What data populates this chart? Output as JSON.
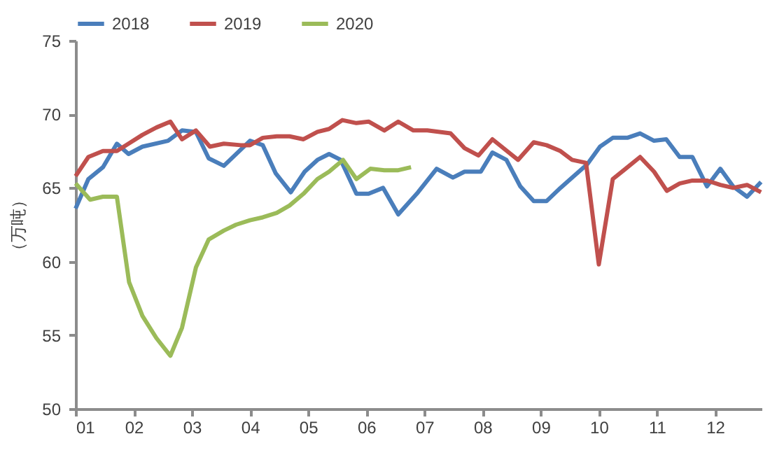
{
  "chart_data": {
    "type": "line",
    "ylabel": "（万吨）",
    "xlim": [
      1,
      12.8
    ],
    "ylim": [
      50,
      75
    ],
    "yticks": [
      50,
      55,
      60,
      65,
      70,
      75
    ],
    "xticks": [
      {
        "value": 1,
        "label": "01"
      },
      {
        "value": 2,
        "label": "02"
      },
      {
        "value": 3,
        "label": "03"
      },
      {
        "value": 4,
        "label": "04"
      },
      {
        "value": 5,
        "label": "05"
      },
      {
        "value": 6,
        "label": "06"
      },
      {
        "value": 7,
        "label": "07"
      },
      {
        "value": 8,
        "label": "08"
      },
      {
        "value": 9,
        "label": "09"
      },
      {
        "value": 10,
        "label": "10"
      },
      {
        "value": 11,
        "label": "11"
      },
      {
        "value": 12,
        "label": "12"
      }
    ],
    "grid": false,
    "legend": "top",
    "marker": "none",
    "line_style": "solid",
    "series": [
      {
        "name": "2018",
        "color": "#4a7ebb",
        "x": [
          1.0,
          1.22,
          1.47,
          1.71,
          1.91,
          2.15,
          2.59,
          2.83,
          3.07,
          3.29,
          3.55,
          4.0,
          4.22,
          4.44,
          4.7,
          4.94,
          5.16,
          5.36,
          5.56,
          5.83,
          6.04,
          6.29,
          6.55,
          6.89,
          7.21,
          7.49,
          7.69,
          7.97,
          8.17,
          8.41,
          8.65,
          8.88,
          9.1,
          9.34,
          9.8,
          10.02,
          10.24,
          10.49,
          10.71,
          10.95,
          11.16,
          11.39,
          11.61,
          11.86,
          12.09,
          12.31,
          12.55,
          12.79
        ],
        "values": [
          63.6,
          65.6,
          66.4,
          68.0,
          67.3,
          67.8,
          68.2,
          68.9,
          68.8,
          67.0,
          66.5,
          68.2,
          67.9,
          66.0,
          64.7,
          66.1,
          66.9,
          67.3,
          66.9,
          64.6,
          64.6,
          65.0,
          63.2,
          64.7,
          66.3,
          65.7,
          66.1,
          66.1,
          67.4,
          66.9,
          65.1,
          64.1,
          64.1,
          65.0,
          66.6,
          67.8,
          68.4,
          68.4,
          68.7,
          68.2,
          68.3,
          67.1,
          67.1,
          65.1,
          66.3,
          65.1,
          64.4,
          65.4
        ]
      },
      {
        "name": "2019",
        "color": "#c0504d",
        "x": [
          1.0,
          1.22,
          1.47,
          1.71,
          1.91,
          2.15,
          2.39,
          2.63,
          2.83,
          3.07,
          3.31,
          3.55,
          3.84,
          4.0,
          4.22,
          4.46,
          4.68,
          4.92,
          5.16,
          5.36,
          5.59,
          5.83,
          6.04,
          6.31,
          6.55,
          6.81,
          7.05,
          7.45,
          7.69,
          7.93,
          8.17,
          8.61,
          8.88,
          9.1,
          9.34,
          9.54,
          9.78,
          10.0,
          10.24,
          10.46,
          10.71,
          10.95,
          11.17,
          11.39,
          11.61,
          11.86,
          12.09,
          12.31,
          12.55,
          12.79
        ],
        "values": [
          65.8,
          67.1,
          67.5,
          67.5,
          68.0,
          68.6,
          69.1,
          69.5,
          68.3,
          68.9,
          67.8,
          68.0,
          67.9,
          67.9,
          68.4,
          68.5,
          68.5,
          68.3,
          68.8,
          69.0,
          69.6,
          69.4,
          69.5,
          68.9,
          69.5,
          68.9,
          68.9,
          68.7,
          67.7,
          67.2,
          68.3,
          66.9,
          68.1,
          67.9,
          67.5,
          66.9,
          66.7,
          59.8,
          65.6,
          66.3,
          67.1,
          66.1,
          64.8,
          65.3,
          65.5,
          65.5,
          65.2,
          65.0,
          65.2,
          64.7
        ]
      },
      {
        "name": "2020",
        "color": "#9bbb59",
        "x": [
          1.0,
          1.25,
          1.47,
          1.71,
          1.92,
          2.15,
          2.39,
          2.63,
          2.83,
          3.07,
          3.29,
          3.55,
          3.76,
          4.0,
          4.22,
          4.46,
          4.68,
          4.92,
          5.16,
          5.36,
          5.6,
          5.83,
          6.07,
          6.31,
          6.55,
          6.77
        ],
        "values": [
          65.3,
          64.2,
          64.4,
          64.4,
          58.6,
          56.3,
          54.8,
          53.6,
          55.5,
          59.6,
          61.5,
          62.1,
          62.5,
          62.8,
          63.0,
          63.3,
          63.8,
          64.6,
          65.6,
          66.1,
          66.9,
          65.6,
          66.3,
          66.2,
          66.2,
          66.4
        ]
      }
    ]
  }
}
